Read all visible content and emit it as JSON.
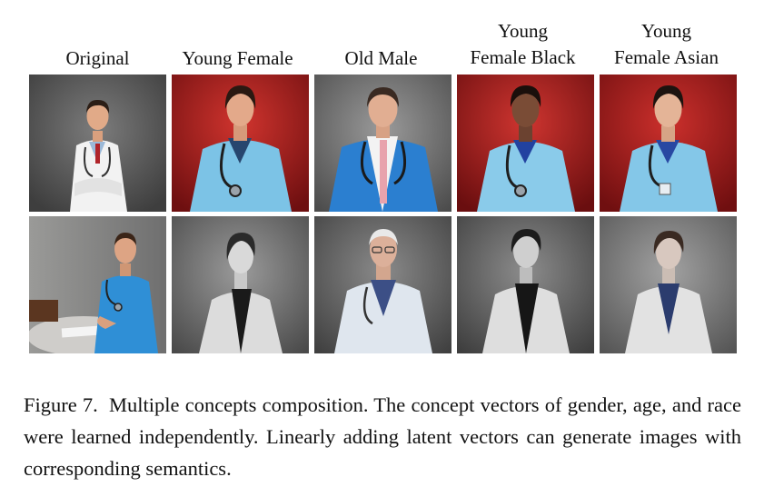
{
  "columns": [
    {
      "label_lines": [
        "Original"
      ]
    },
    {
      "label_lines": [
        "Young Female"
      ]
    },
    {
      "label_lines": [
        "Old Male"
      ]
    },
    {
      "label_lines": [
        "Young",
        "Female Black"
      ]
    },
    {
      "label_lines": [
        "Young",
        "Female Asian"
      ]
    }
  ],
  "caption": {
    "label": "Figure 7.",
    "text": "Multiple concepts composition. The concept vectors of gender, age, and race were learned independently. Linearly adding latent vectors can generate images with corresponding semantics."
  },
  "colors": {
    "red_backdrop": "#b8211f",
    "grey_backdrop": "#6f6f6f",
    "coat_blue": "#7cc3e6",
    "scrubs_blue": "#2b7fd0"
  }
}
